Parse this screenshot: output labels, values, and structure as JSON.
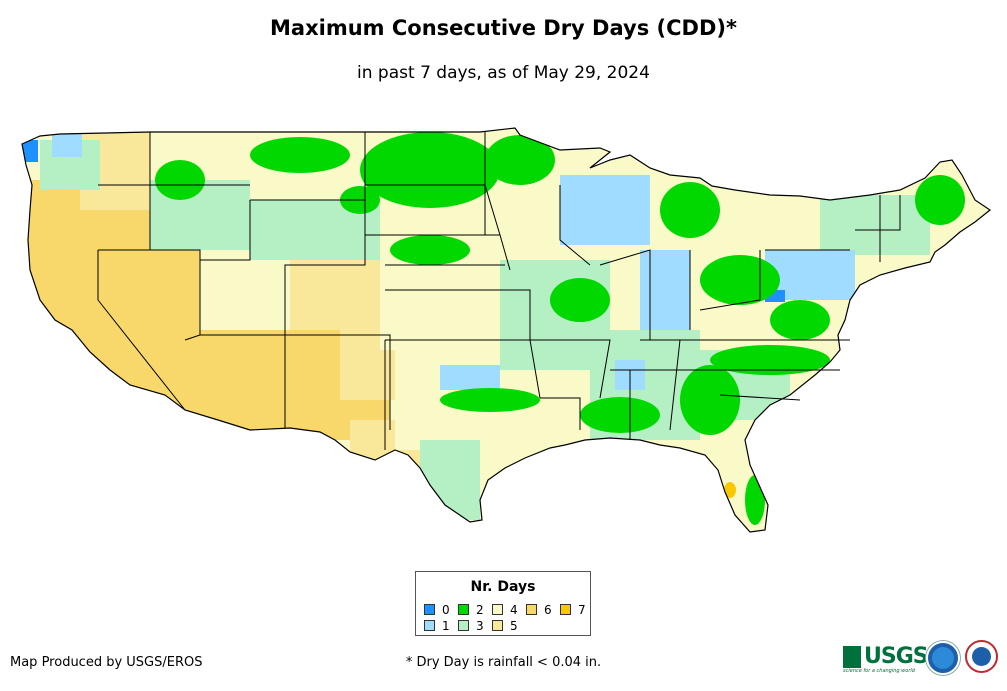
{
  "title": "Maximum Consecutive Dry Days (CDD)*",
  "subtitle": "in past 7 days, as of May 29, 2024",
  "legend": {
    "title": "Nr. Days",
    "items": [
      {
        "label": "0",
        "color": "#1e90ff"
      },
      {
        "label": "1",
        "color": "#9fdcff"
      },
      {
        "label": "2",
        "color": "#00d800"
      },
      {
        "label": "3",
        "color": "#b4f0c4"
      },
      {
        "label": "4",
        "color": "#fafac8"
      },
      {
        "label": "5",
        "color": "#fae89a"
      },
      {
        "label": "6",
        "color": "#f8d86a"
      },
      {
        "label": "7",
        "color": "#f8c800"
      }
    ]
  },
  "credit": "Map Produced by USGS/EROS",
  "footnote": "* Dry Day is rainfall < 0.04 in.",
  "logos": {
    "usgs": "USGS",
    "usgs_tagline": "science for a changing world",
    "noaa": "noaa-logo",
    "nws": "nws-logo"
  }
}
